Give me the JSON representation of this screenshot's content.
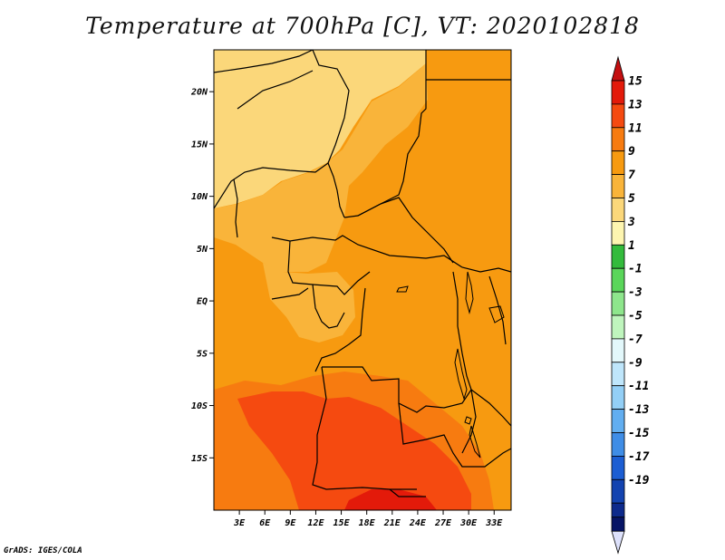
{
  "title": "Temperature at 700hPa [C], VT: 2020102818",
  "credit": "GrADS: IGES/COLA",
  "map": {
    "lon_range": [
      0,
      35
    ],
    "lat_range": [
      -20,
      24
    ],
    "lat_ticks": [
      {
        "value": 20,
        "label": "20N"
      },
      {
        "value": 15,
        "label": "15N"
      },
      {
        "value": 10,
        "label": "10N"
      },
      {
        "value": 5,
        "label": "5N"
      },
      {
        "value": 0,
        "label": "EQ"
      },
      {
        "value": -5,
        "label": "5S"
      },
      {
        "value": -10,
        "label": "10S"
      },
      {
        "value": -15,
        "label": "15S"
      }
    ],
    "lon_ticks": [
      {
        "value": 3,
        "label": "3E"
      },
      {
        "value": 6,
        "label": "6E"
      },
      {
        "value": 9,
        "label": "9E"
      },
      {
        "value": 12,
        "label": "12E"
      },
      {
        "value": 15,
        "label": "15E"
      },
      {
        "value": 18,
        "label": "18E"
      },
      {
        "value": 21,
        "label": "21E"
      },
      {
        "value": 24,
        "label": "24E"
      },
      {
        "value": 27,
        "label": "27E"
      },
      {
        "value": 30,
        "label": "30E"
      },
      {
        "value": 33,
        "label": "33E"
      }
    ]
  },
  "colorbar": {
    "entries": [
      {
        "label": "15",
        "color": "#e31a0a"
      },
      {
        "label": "13",
        "color": "#f54a10"
      },
      {
        "label": "11",
        "color": "#f77b10"
      },
      {
        "label": "9",
        "color": "#f79a10"
      },
      {
        "label": "7",
        "color": "#f9b43a"
      },
      {
        "label": "5",
        "color": "#fbd77a"
      },
      {
        "label": "3",
        "color": "#fdf5b0"
      },
      {
        "label": "1",
        "color": "#33bb3c"
      },
      {
        "label": "-1",
        "color": "#5ad65a"
      },
      {
        "label": "-3",
        "color": "#8ee68c"
      },
      {
        "label": "-5",
        "color": "#bff5bd"
      },
      {
        "label": "-7",
        "color": "#e3f8fb"
      },
      {
        "label": "-9",
        "color": "#bfe6fb"
      },
      {
        "label": "-11",
        "color": "#93cff6"
      },
      {
        "label": "-13",
        "color": "#62aef0"
      },
      {
        "label": "-15",
        "color": "#3f8de6"
      },
      {
        "label": "-17",
        "color": "#1c5ed3"
      },
      {
        "label": "-19",
        "color": "#1343b0"
      }
    ],
    "top_arrow_color": "#c40f10",
    "band_colors_below": [
      "#0d2a8c",
      "#061466"
    ],
    "bottom_arrow_color": "#dde1fb"
  },
  "field": {
    "base_color": "#f79a10",
    "border_color": "#000000",
    "regions": [
      {
        "name": "sahel-cool-north",
        "color": "#fbd77a"
      },
      {
        "name": "north-warm-tongue",
        "color": "#f9b43a"
      },
      {
        "name": "gabon-warm",
        "color": "#f9b43a"
      },
      {
        "name": "angola-warm",
        "color": "#f77b10"
      },
      {
        "name": "angola-hot-core",
        "color": "#f54a10"
      },
      {
        "name": "southern-hot-core",
        "color": "#e31a0a"
      }
    ]
  }
}
